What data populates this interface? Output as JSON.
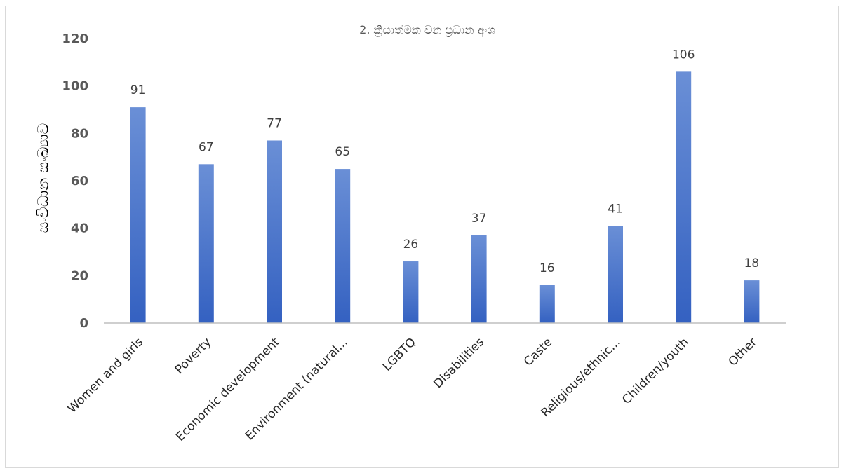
{
  "chart_data": {
    "type": "bar",
    "title": "2. ක්‍රියාත්මක වන ප්‍රධාන අංශ",
    "xlabel": "",
    "ylabel": "සංවිධාන සංඛ්‍යාව",
    "ylim": [
      0,
      120
    ],
    "yticks": [
      0,
      20,
      40,
      60,
      80,
      100,
      120
    ],
    "grid": false,
    "legend": "none",
    "categories": [
      "Women and girls",
      "Poverty",
      "Economic development",
      "Environment (natural...",
      "LGBTQ",
      "Disabilities",
      "Caste",
      "Religious/ethnic...",
      "Children/youth",
      "Other"
    ],
    "values": [
      91,
      67,
      77,
      65,
      26,
      37,
      16,
      41,
      106,
      18
    ],
    "colors": {
      "bar_top": "#6a8fd6",
      "bar_bottom": "#3461c1",
      "axis": "#bfbfbf"
    }
  }
}
